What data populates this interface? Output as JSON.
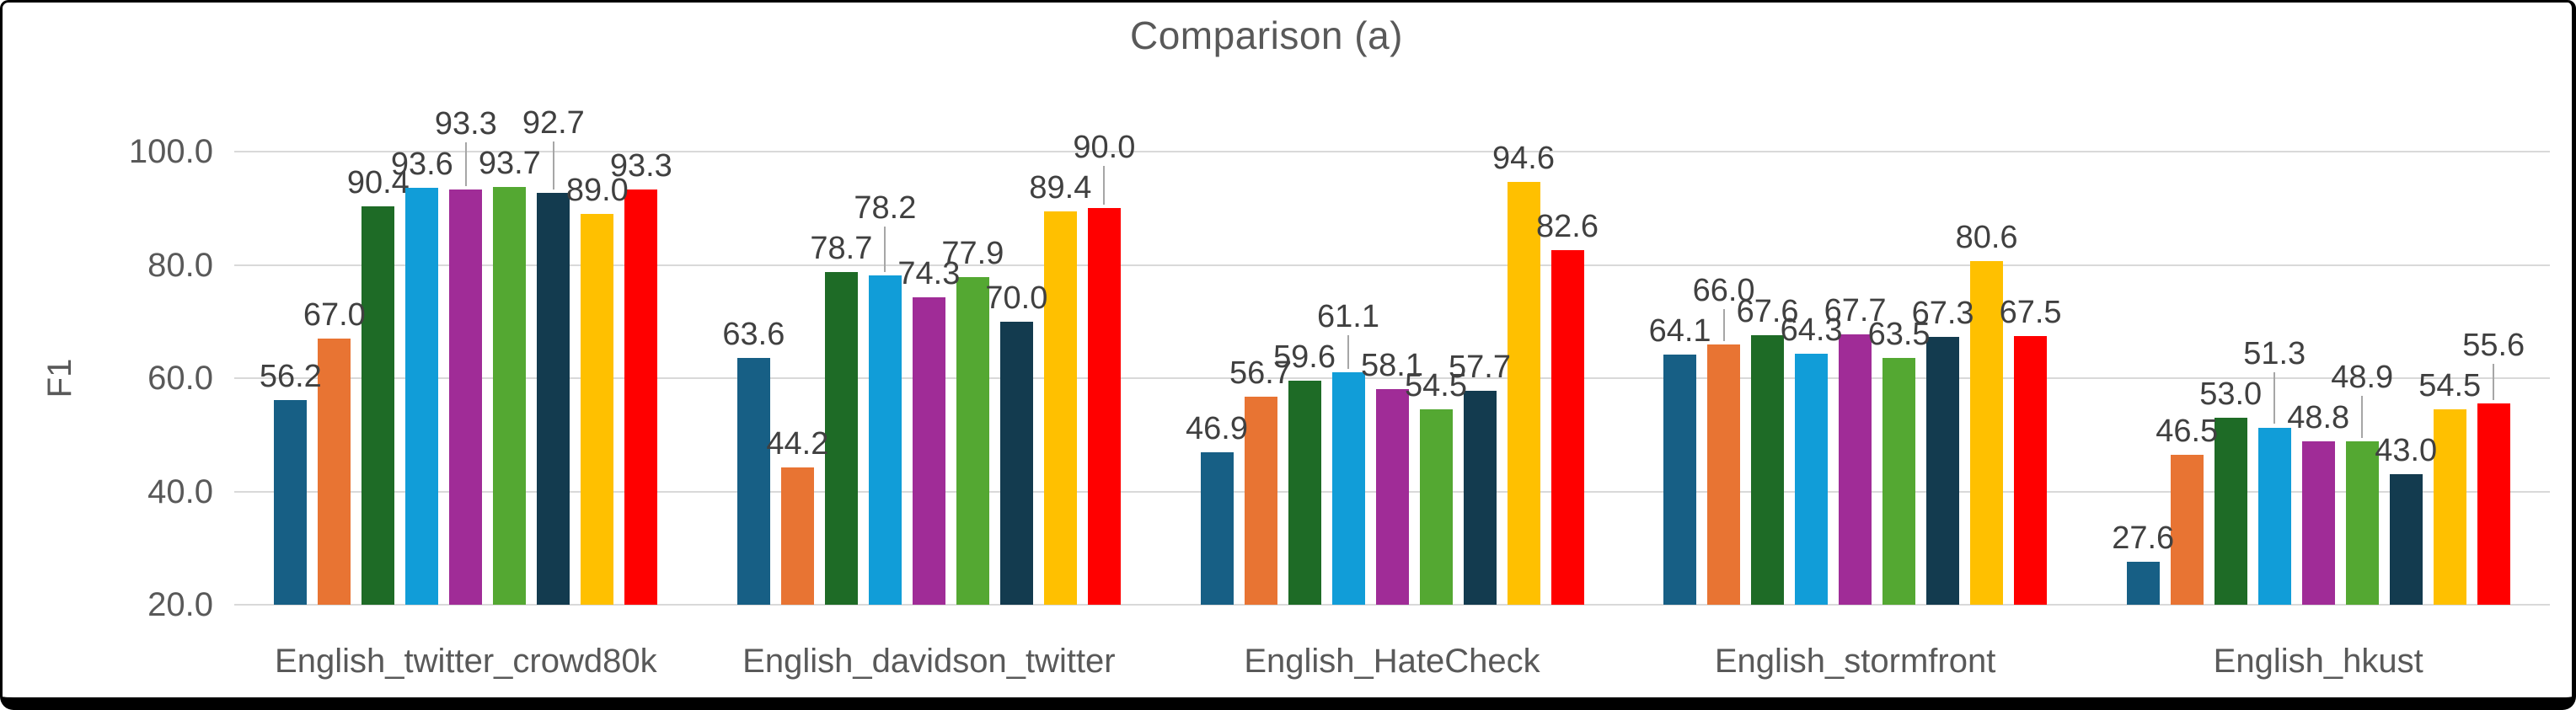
{
  "title": "Comparison (a)",
  "y_axis": {
    "label": "F1",
    "min": 20,
    "max": 100,
    "tick_step": 20,
    "ticks": [
      "100.0",
      "80.0",
      "60.0",
      "40.0",
      "20.0"
    ],
    "grid_color": "#D9D9D9"
  },
  "x_axis": {
    "categories": [
      "English_twitter_crowd80k",
      "English_davidson_twitter",
      "English_HateCheck",
      "English_stormfront",
      "English_hkust"
    ]
  },
  "label_color": "#404040",
  "axis_text_color": "#595959",
  "leader_line_color": "#A6A6A6",
  "chart_data": {
    "type": "bar",
    "title": "Comparison (a)",
    "xlabel": "",
    "ylabel": "F1",
    "ylim": [
      20,
      100
    ],
    "grid": true,
    "legend": "none",
    "categories": [
      "English_twitter_crowd80k",
      "English_davidson_twitter",
      "English_HateCheck",
      "English_stormfront",
      "English_hkust"
    ],
    "series": [
      {
        "name": "series-1",
        "color": "#175F85",
        "values": [
          56.2,
          63.6,
          46.9,
          64.1,
          27.6
        ]
      },
      {
        "name": "series-2",
        "color": "#E87433",
        "values": [
          67.0,
          44.2,
          56.7,
          66.0,
          46.5
        ]
      },
      {
        "name": "series-3",
        "color": "#1E6B26",
        "values": [
          90.4,
          78.7,
          59.6,
          67.6,
          53.0
        ]
      },
      {
        "name": "series-4",
        "color": "#119DD8",
        "values": [
          93.6,
          78.2,
          61.1,
          64.3,
          51.3
        ]
      },
      {
        "name": "series-5",
        "color": "#A02C97",
        "values": [
          93.3,
          74.3,
          58.1,
          67.7,
          48.8
        ]
      },
      {
        "name": "series-6",
        "color": "#54A832",
        "values": [
          93.7,
          77.9,
          54.5,
          63.5,
          48.9
        ]
      },
      {
        "name": "series-7",
        "color": "#133B4F",
        "values": [
          92.7,
          70.0,
          57.7,
          67.3,
          43.0
        ]
      },
      {
        "name": "series-8",
        "color": "#FFC000",
        "values": [
          89.0,
          89.4,
          94.6,
          80.6,
          54.5
        ]
      },
      {
        "name": "series-9",
        "color": "#FF0000",
        "values": [
          93.3,
          90.0,
          82.6,
          67.5,
          55.6
        ]
      }
    ]
  }
}
